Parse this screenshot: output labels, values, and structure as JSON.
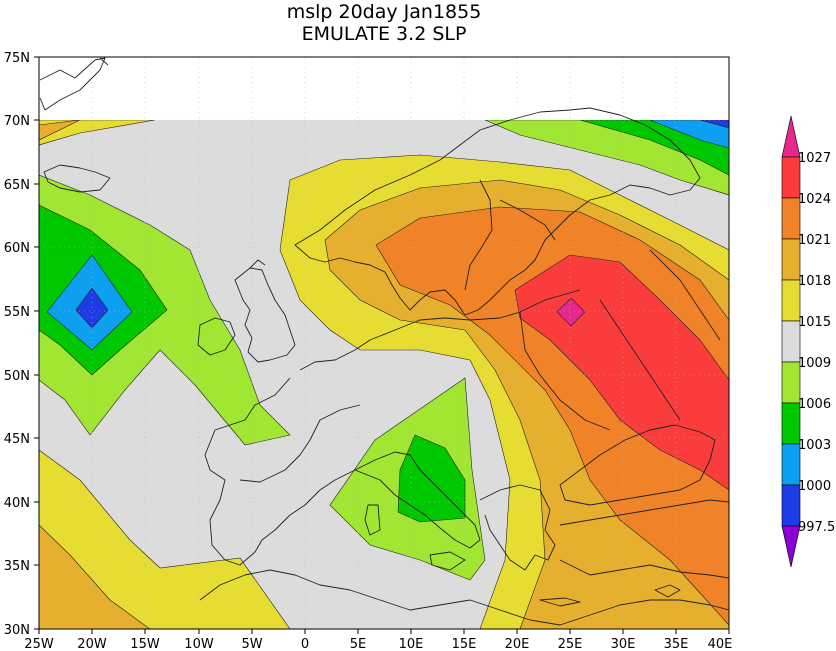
{
  "title": {
    "line1": "mslp 20day Jan1855",
    "line2": "EMULATE 3.2 SLP"
  },
  "chart_data": {
    "type": "map",
    "variable": "mslp",
    "projection": "lat-lon",
    "lon_range": [
      -25,
      40
    ],
    "lat_range": [
      30,
      75
    ],
    "data_lat_max": 70,
    "x_ticks": [
      "25W",
      "20W",
      "15W",
      "10W",
      "5W",
      "0",
      "5E",
      "10E",
      "15E",
      "20E",
      "25E",
      "30E",
      "35E",
      "40E"
    ],
    "y_ticks": [
      "30N",
      "35N",
      "40N",
      "45N",
      "50N",
      "55N",
      "60N",
      "65N",
      "70N",
      "75N"
    ],
    "grid": true,
    "legend": {
      "placement": "right",
      "levels": [
        "997.5",
        "1000",
        "1003",
        "1006",
        "1009",
        "1015",
        "1018",
        "1021",
        "1024",
        "1027"
      ],
      "colors": [
        "#8a00d6",
        "#1e3ce6",
        "#0ea0f0",
        "#00c800",
        "#a0e632",
        "#dcdcdc",
        "#e6dc32",
        "#e6af2d",
        "#f08228",
        "#fa3c3c",
        "#e6288c"
      ]
    },
    "features": [
      {
        "label": "low",
        "center_lon": -20,
        "center_lat": 55
      },
      {
        "label": "low",
        "center_lon": 11,
        "center_lat": 41
      },
      {
        "label": "high",
        "center_lon": 25,
        "center_lat": 55
      }
    ]
  }
}
